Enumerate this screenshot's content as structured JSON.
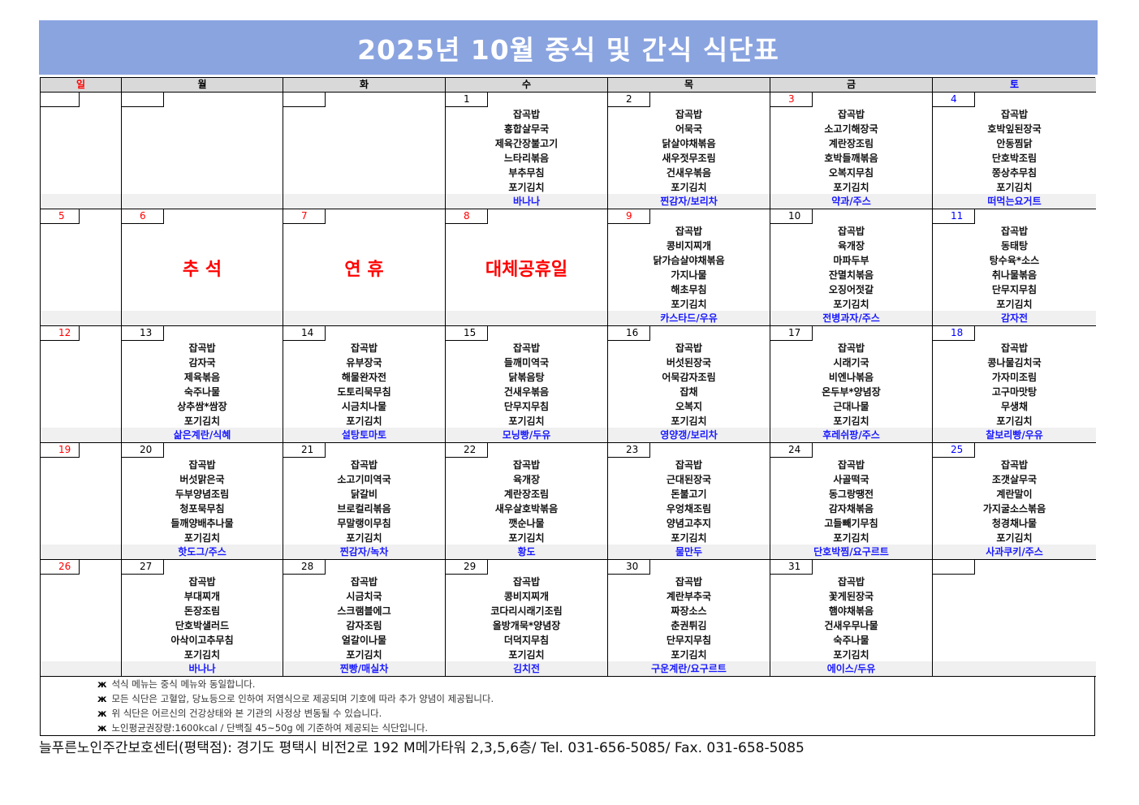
{
  "title": "2025년 10월 중식 및 간식 식단표",
  "weekdays": [
    {
      "label": "일",
      "color": "#ff0000"
    },
    {
      "label": "월",
      "color": "#000000"
    },
    {
      "label": "화",
      "color": "#000000"
    },
    {
      "label": "수",
      "color": "#000000"
    },
    {
      "label": "목",
      "color": "#000000"
    },
    {
      "label": "금",
      "color": "#000000"
    },
    {
      "label": "토",
      "color": "#0000ff"
    }
  ],
  "weeks": [
    [
      {
        "day": "",
        "color": "#000000",
        "menu": [],
        "snack": ""
      },
      {
        "day": "",
        "color": "#000000",
        "menu": [],
        "snack": ""
      },
      {
        "day": "",
        "color": "#000000",
        "menu": [],
        "snack": ""
      },
      {
        "day": "1",
        "color": "#000000",
        "menu": [
          "잡곡밥",
          "홍합살무국",
          "제육간장불고기",
          "느타리볶음",
          "부추무침",
          "포기김치"
        ],
        "snack": "바나나"
      },
      {
        "day": "2",
        "color": "#000000",
        "menu": [
          "잡곡밥",
          "어묵국",
          "닭살야채볶음",
          "새우젓무조림",
          "건새우볶음",
          "포기김치"
        ],
        "snack": "찐감자/보리차"
      },
      {
        "day": "3",
        "color": "#ff0000",
        "menu": [
          "잡곡밥",
          "소고기해장국",
          "계란장조림",
          "호박들깨볶음",
          "오복지무침",
          "포기김치"
        ],
        "snack": "약과/주스"
      },
      {
        "day": "4",
        "color": "#0000ff",
        "menu": [
          "잡곡밥",
          "호박잎된장국",
          "안동찜닭",
          "단호박조림",
          "쫑상추무침",
          "포기김치"
        ],
        "snack": "떠먹는요거트"
      }
    ],
    [
      {
        "day": "5",
        "color": "#ff0000",
        "menu": [],
        "snack": ""
      },
      {
        "day": "6",
        "color": "#ff0000",
        "menu": [],
        "snack": "",
        "holiday": "추 석"
      },
      {
        "day": "7",
        "color": "#ff0000",
        "menu": [],
        "snack": "",
        "holiday": "연 휴"
      },
      {
        "day": "8",
        "color": "#ff0000",
        "menu": [],
        "snack": "",
        "holiday": "대체공휴일"
      },
      {
        "day": "9",
        "color": "#ff0000",
        "menu": [
          "잡곡밥",
          "콩비지찌개",
          "닭가슴살야채볶음",
          "가지나물",
          "해초무침",
          "포기김치"
        ],
        "snack": "카스타드/우유"
      },
      {
        "day": "10",
        "color": "#000000",
        "menu": [
          "잡곡밥",
          "육개장",
          "마파두부",
          "잔멸치볶음",
          "오징어젓갈",
          "포기김치"
        ],
        "snack": "전병과자/주스"
      },
      {
        "day": "11",
        "color": "#0000ff",
        "menu": [
          "잡곡밥",
          "동태탕",
          "탕수육*소스",
          "취나물볶음",
          "단무지무침",
          "포기김치"
        ],
        "snack": "감자전"
      }
    ],
    [
      {
        "day": "12",
        "color": "#ff0000",
        "menu": [],
        "snack": ""
      },
      {
        "day": "13",
        "color": "#000000",
        "menu": [
          "잡곡밥",
          "감자국",
          "제육볶음",
          "숙주나물",
          "상추쌈*쌈장",
          "포기김치"
        ],
        "snack": "삶은계란/식혜"
      },
      {
        "day": "14",
        "color": "#000000",
        "menu": [
          "잡곡밥",
          "유부장국",
          "해물완자전",
          "도토리묵무침",
          "시금치나물",
          "포기김치"
        ],
        "snack": "설탕토마토"
      },
      {
        "day": "15",
        "color": "#000000",
        "menu": [
          "잡곡밥",
          "들깨미역국",
          "닭볶음탕",
          "건새우볶음",
          "단무지무침",
          "포기김치"
        ],
        "snack": "모닝빵/두유"
      },
      {
        "day": "16",
        "color": "#000000",
        "menu": [
          "잡곡밥",
          "버섯된장국",
          "어묵감자조림",
          "잡채",
          "오복지",
          "포기김치"
        ],
        "snack": "영양갱/보리차"
      },
      {
        "day": "17",
        "color": "#000000",
        "menu": [
          "잡곡밥",
          "시래기국",
          "비엔나볶음",
          "온두부*양념장",
          "근대나물",
          "포기김치"
        ],
        "snack": "후레쉬팡/주스"
      },
      {
        "day": "18",
        "color": "#0000ff",
        "menu": [
          "잡곡밥",
          "콩나물김치국",
          "가자미조림",
          "고구마맛탕",
          "무생채",
          "포기김치"
        ],
        "snack": "찰보리빵/우유"
      }
    ],
    [
      {
        "day": "19",
        "color": "#ff0000",
        "menu": [],
        "snack": ""
      },
      {
        "day": "20",
        "color": "#000000",
        "menu": [
          "잡곡밥",
          "버섯맑은국",
          "두부양념조림",
          "청포묵무침",
          "들깨양배추나물",
          "포기김치"
        ],
        "snack": "핫도그/주스"
      },
      {
        "day": "21",
        "color": "#000000",
        "menu": [
          "잡곡밥",
          "소고기미역국",
          "닭갈비",
          "브로컬리볶음",
          "무말랭이무침",
          "포기김치"
        ],
        "snack": "찐감자/녹차"
      },
      {
        "day": "22",
        "color": "#000000",
        "menu": [
          "잡곡밥",
          "육개장",
          "계란장조림",
          "새우살호박볶음",
          "깻순나물",
          "포기김치"
        ],
        "snack": "황도"
      },
      {
        "day": "23",
        "color": "#000000",
        "menu": [
          "잡곡밥",
          "근대된장국",
          "돈불고기",
          "우엉채조림",
          "양념고추지",
          "포기김치"
        ],
        "snack": "물만두"
      },
      {
        "day": "24",
        "color": "#000000",
        "menu": [
          "잡곡밥",
          "사골떡국",
          "동그랑땡전",
          "감자채볶음",
          "고들빼기무침",
          "포기김치"
        ],
        "snack": "단호박찜/요구르트"
      },
      {
        "day": "25",
        "color": "#0000ff",
        "menu": [
          "잡곡밥",
          "조갯살무국",
          "계란말이",
          "가지굴소스볶음",
          "청경채나물",
          "포기김치"
        ],
        "snack": "사과쿠키/주스"
      }
    ],
    [
      {
        "day": "26",
        "color": "#ff0000",
        "menu": [],
        "snack": ""
      },
      {
        "day": "27",
        "color": "#000000",
        "menu": [
          "잡곡밥",
          "부대찌개",
          "돈장조림",
          "단호박샐러드",
          "아삭이고추무침",
          "포기김치"
        ],
        "snack": "바나나"
      },
      {
        "day": "28",
        "color": "#000000",
        "menu": [
          "잡곡밥",
          "시금치국",
          "스크램블에그",
          "감자조림",
          "얼갈이나물",
          "포기김치"
        ],
        "snack": "찐빵/매실차"
      },
      {
        "day": "29",
        "color": "#000000",
        "menu": [
          "잡곡밥",
          "콩비지찌개",
          "코다리시래기조림",
          "올방개묵*양념장",
          "더덕지무침",
          "포기김치"
        ],
        "snack": "김치전"
      },
      {
        "day": "30",
        "color": "#000000",
        "menu": [
          "잡곡밥",
          "계란부추국",
          "짜장소스",
          "춘권튀김",
          "단무지무침",
          "포기김치"
        ],
        "snack": "구운계란/요구르트"
      },
      {
        "day": "31",
        "color": "#000000",
        "menu": [
          "잡곡밥",
          "꽃게된장국",
          "햄야채볶음",
          "건새우무나물",
          "숙주나물",
          "포기김치"
        ],
        "snack": "에이스/두유"
      },
      {
        "day": "",
        "color": "#000000",
        "menu": [],
        "snack": ""
      }
    ]
  ],
  "notes": {
    "marker": "ж",
    "items": [
      "석식 메뉴는 중식 메뉴와 동일합니다.",
      "모든 식단은 고혈압, 당뇨등으로 인하여 저염식으로 제공되며 기호에 따라 추가 양념이 제공됩니다.",
      "위 식단은 어르신의 건강상태와 본 기관의 사정상 변동될 수 있습니다.",
      "노인평균권장량:1600kcal / 단백질 45~50g 에 기준하여 제공되는 식단입니다."
    ]
  },
  "footer": "늘푸른노인주간보호센터(평택점): 경기도 평택시 비전2로 192 M메가타워 2,3,5,6층/ Tel. 031-656-5085/ Fax. 031-658-5085",
  "colors": {
    "banner": "#8aa4e0",
    "snack": "#1a1aff",
    "holiday": "#ff0000",
    "header_bg": "#d9d9d9"
  }
}
